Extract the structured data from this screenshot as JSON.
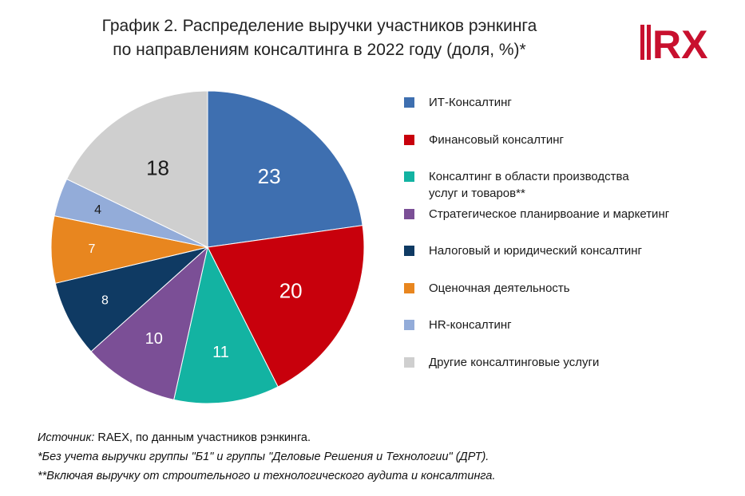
{
  "title_lines": [
    "График 2. Распределение выручки участников рэнкинга",
    "по направлениям консалтинга в 2022 году (доля, %)*"
  ],
  "logo": {
    "text": "RX",
    "colors": {
      "bar": "#c8102e",
      "text": "#c8102e"
    }
  },
  "chart_data": {
    "type": "pie",
    "title": "График 2. Распределение выручки участников рэнкинга по направлениям консалтинга в 2022 году (доля, %)*",
    "start": "12 o'clock, clockwise",
    "legend_position": "right",
    "slices": [
      {
        "label": "ИТ-Консалтинг",
        "value": 23,
        "color": "#3e6fb0",
        "label_color": "#ffffff"
      },
      {
        "label": "Финансовый консалтинг",
        "value": 20,
        "color": "#c8000c",
        "label_color": "#ffffff"
      },
      {
        "label": "Консалтинг в области производства услуг и товаров**",
        "value": 11,
        "color": "#13b3a2",
        "label_color": "#ffffff"
      },
      {
        "label": "Стратегическое планирвоание и маркетинг",
        "value": 10,
        "color": "#7b4f96",
        "label_color": "#ffffff"
      },
      {
        "label": "Налоговый и юридический консалтинг",
        "value": 8,
        "color": "#0f3a63",
        "label_color": "#ffffff"
      },
      {
        "label": "Оценочная деятельность",
        "value": 7,
        "color": "#e8861f",
        "label_color": "#ffffff"
      },
      {
        "label": "HR-консалтинг",
        "value": 4,
        "color": "#93acd9",
        "label_color": "#1a1a1a"
      },
      {
        "label": "Другие консалтинговые услуги",
        "value": 18,
        "color": "#cfcfcf",
        "label_color": "#1a1a1a"
      }
    ]
  },
  "legend_lines": [
    [
      "ИТ-Консалтинг"
    ],
    [
      "Финансовый консалтинг"
    ],
    [
      "Консалтинг в области производства",
      "услуг и товаров**"
    ],
    [
      "Стратегическое планирвоание и маркетинг"
    ],
    [
      "Налоговый и юридический консалтинг"
    ],
    [
      "Оценочная деятельность"
    ],
    [
      "HR-консалтинг"
    ],
    [
      "Другие консалтинговые услуги"
    ]
  ],
  "notes": {
    "source_label": "Источник:",
    "source_text": " RAEX, по данным участников рэнкинга.",
    "footnote1": "*Без учета выручки группы \"Б1\" и группы \"Деловые Решения и Технологии\" (ДРТ).",
    "footnote2": "**Включая выручку от строительного и технологического аудита и консалтинга."
  }
}
